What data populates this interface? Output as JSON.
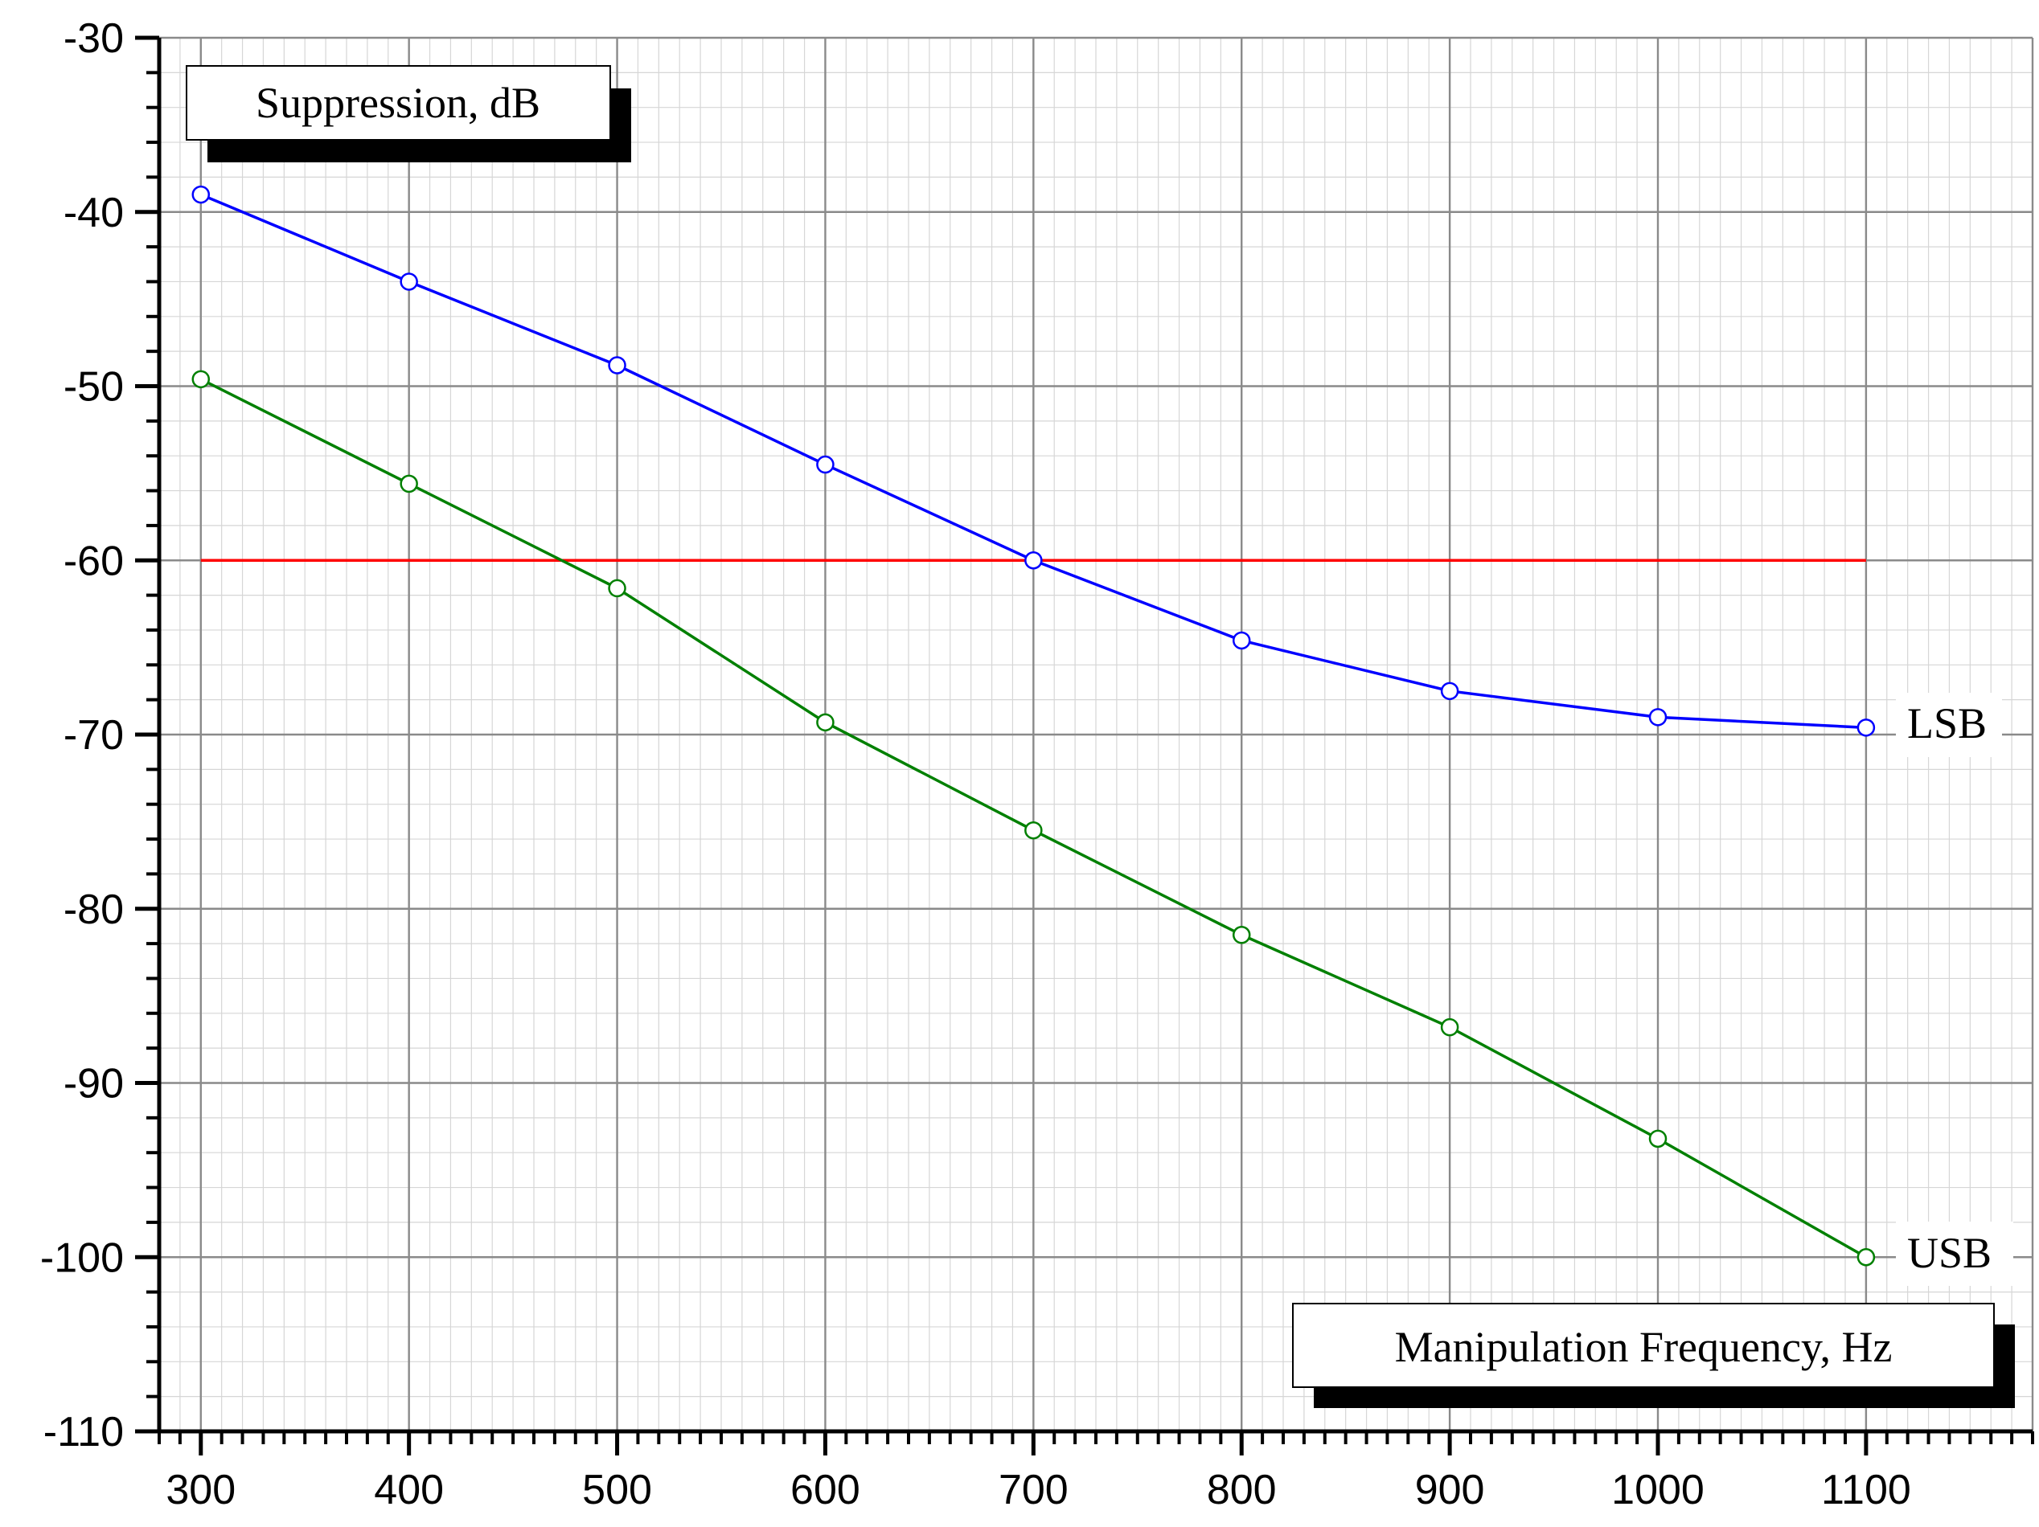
{
  "chart_data": {
    "type": "line",
    "title": "",
    "ylabel": "Suppression, dB",
    "xlabel": "Manipulation Frequency, Hz",
    "xlim": [
      280,
      1180
    ],
    "ylim": [
      -110,
      -30
    ],
    "x_ticks": [
      300,
      400,
      500,
      600,
      700,
      800,
      900,
      1000,
      1100
    ],
    "x_tick_labels": [
      "300",
      "400",
      "500",
      "600",
      "700",
      "800",
      "900",
      "1000",
      "1100"
    ],
    "y_ticks": [
      -30,
      -40,
      -50,
      -60,
      -70,
      -80,
      -90,
      -100,
      -110
    ],
    "y_tick_labels": [
      "-30",
      "-40",
      "-50",
      "-60",
      "-70",
      "-80",
      "-90",
      "-100",
      "-110"
    ],
    "grid": true,
    "x": [
      300,
      400,
      500,
      600,
      700,
      800,
      900,
      1000,
      1100
    ],
    "series": [
      {
        "name": "LSB",
        "color": "#0000ff",
        "values": [
          -39,
          -44,
          -48.8,
          -54.5,
          -60,
          -64.6,
          -67.5,
          -69,
          -69.6
        ]
      },
      {
        "name": "USB",
        "color": "#008000",
        "values": [
          -49.6,
          -55.6,
          -61.6,
          -69.3,
          -75.5,
          -81.5,
          -86.8,
          -93.2,
          -100
        ]
      }
    ],
    "reference_line": {
      "y": -60,
      "x_range": [
        300,
        1100
      ],
      "color": "#ff0000"
    }
  }
}
